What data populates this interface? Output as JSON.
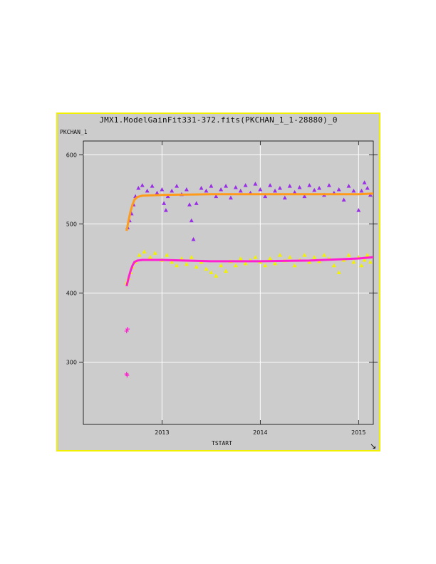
{
  "window": {
    "title": "JMX1.ModelGainFit331-372.fits(PKCHAN_1_1-28880)_0"
  },
  "colors": {
    "panel_bg": "#cccccc",
    "panel_border": "#f0f000",
    "purple_points": "#9a2ee6",
    "yellow_points": "#f2f200",
    "orange_fit": "#ff9a1a",
    "magenta_fit": "#ff1fd0"
  },
  "icons": {
    "resize": "resize-corner-icon"
  },
  "chart_data": {
    "type": "scatter",
    "title": "JMX1.ModelGainFit331-372.fits(PKCHAN_1_1-28880)_0",
    "xlabel": "TSTART",
    "ylabel": "PKCHAN_1",
    "xlim": [
      2012.2,
      2015.15
    ],
    "ylim": [
      210,
      620
    ],
    "x_ticks": [
      2013,
      2014,
      2015
    ],
    "x_tick_labels": [
      "2013",
      "2014",
      "2015"
    ],
    "y_ticks": [
      300,
      400,
      500,
      600
    ],
    "y_tick_labels": [
      "300",
      "400",
      "500",
      "600"
    ],
    "grid": true,
    "series": [
      {
        "marker": "triangle",
        "color": "#9a2ee6",
        "points": [
          [
            2012.65,
            495
          ],
          [
            2012.67,
            505
          ],
          [
            2012.69,
            515
          ],
          [
            2012.71,
            528
          ],
          [
            2012.73,
            540
          ],
          [
            2012.76,
            552
          ],
          [
            2012.8,
            556
          ],
          [
            2012.85,
            548
          ],
          [
            2012.9,
            555
          ],
          [
            2012.95,
            545
          ],
          [
            2013.0,
            550
          ],
          [
            2013.02,
            530
          ],
          [
            2013.04,
            520
          ],
          [
            2013.06,
            540
          ],
          [
            2013.1,
            548
          ],
          [
            2013.15,
            555
          ],
          [
            2013.2,
            543
          ],
          [
            2013.25,
            550
          ],
          [
            2013.28,
            528
          ],
          [
            2013.3,
            505
          ],
          [
            2013.32,
            478
          ],
          [
            2013.35,
            530
          ],
          [
            2013.4,
            552
          ],
          [
            2013.45,
            548
          ],
          [
            2013.5,
            555
          ],
          [
            2013.55,
            540
          ],
          [
            2013.6,
            550
          ],
          [
            2013.65,
            555
          ],
          [
            2013.7,
            538
          ],
          [
            2013.75,
            553
          ],
          [
            2013.8,
            548
          ],
          [
            2013.85,
            556
          ],
          [
            2013.9,
            545
          ],
          [
            2013.95,
            558
          ],
          [
            2014.0,
            550
          ],
          [
            2014.05,
            540
          ],
          [
            2014.1,
            556
          ],
          [
            2014.15,
            548
          ],
          [
            2014.2,
            552
          ],
          [
            2014.25,
            538
          ],
          [
            2014.3,
            555
          ],
          [
            2014.35,
            546
          ],
          [
            2014.4,
            553
          ],
          [
            2014.45,
            540
          ],
          [
            2014.5,
            556
          ],
          [
            2014.55,
            549
          ],
          [
            2014.6,
            552
          ],
          [
            2014.65,
            542
          ],
          [
            2014.7,
            556
          ],
          [
            2014.75,
            545
          ],
          [
            2014.8,
            550
          ],
          [
            2014.85,
            535
          ],
          [
            2014.9,
            555
          ],
          [
            2014.95,
            548
          ],
          [
            2015.0,
            520
          ],
          [
            2015.03,
            548
          ],
          [
            2015.06,
            560
          ],
          [
            2015.09,
            552
          ],
          [
            2015.12,
            542
          ]
        ]
      },
      {
        "marker": "triangle",
        "color": "#f2f200",
        "points": [
          [
            2012.64,
            415
          ],
          [
            2012.66,
            422
          ],
          [
            2012.68,
            430
          ],
          [
            2012.7,
            438
          ],
          [
            2012.73,
            445
          ],
          [
            2012.77,
            455
          ],
          [
            2012.82,
            460
          ],
          [
            2012.88,
            452
          ],
          [
            2012.93,
            458
          ],
          [
            2013.0,
            448
          ],
          [
            2013.05,
            455
          ],
          [
            2013.1,
            445
          ],
          [
            2013.15,
            440
          ],
          [
            2013.2,
            450
          ],
          [
            2013.25,
            442
          ],
          [
            2013.3,
            452
          ],
          [
            2013.35,
            438
          ],
          [
            2013.4,
            445
          ],
          [
            2013.45,
            435
          ],
          [
            2013.5,
            430
          ],
          [
            2013.55,
            425
          ],
          [
            2013.6,
            440
          ],
          [
            2013.65,
            432
          ],
          [
            2013.7,
            446
          ],
          [
            2013.75,
            440
          ],
          [
            2013.8,
            450
          ],
          [
            2013.85,
            443
          ],
          [
            2013.9,
            448
          ],
          [
            2013.95,
            452
          ],
          [
            2014.0,
            445
          ],
          [
            2014.05,
            440
          ],
          [
            2014.1,
            450
          ],
          [
            2014.15,
            443
          ],
          [
            2014.2,
            455
          ],
          [
            2014.25,
            447
          ],
          [
            2014.3,
            452
          ],
          [
            2014.35,
            440
          ],
          [
            2014.4,
            448
          ],
          [
            2014.45,
            455
          ],
          [
            2014.5,
            445
          ],
          [
            2014.55,
            452
          ],
          [
            2014.6,
            446
          ],
          [
            2014.65,
            455
          ],
          [
            2014.7,
            450
          ],
          [
            2014.75,
            440
          ],
          [
            2014.8,
            430
          ],
          [
            2014.85,
            448
          ],
          [
            2014.9,
            455
          ],
          [
            2014.95,
            445
          ],
          [
            2015.0,
            452
          ],
          [
            2015.03,
            440
          ],
          [
            2015.06,
            448
          ],
          [
            2015.09,
            455
          ],
          [
            2015.12,
            445
          ]
        ]
      },
      {
        "marker": "plus",
        "color": "#ff1fd0",
        "points": [
          [
            2012.64,
            345
          ],
          [
            2012.65,
            348
          ],
          [
            2012.64,
            283
          ],
          [
            2012.645,
            281
          ]
        ]
      },
      {
        "marker": "line",
        "color": "#ff9a1a",
        "points": [
          [
            2012.64,
            490
          ],
          [
            2012.66,
            505
          ],
          [
            2012.68,
            518
          ],
          [
            2012.7,
            528
          ],
          [
            2012.72,
            535
          ],
          [
            2012.75,
            539
          ],
          [
            2012.8,
            541
          ],
          [
            2013.0,
            542
          ],
          [
            2013.5,
            543
          ],
          [
            2014.0,
            543
          ],
          [
            2014.5,
            543
          ],
          [
            2015.0,
            543
          ],
          [
            2015.15,
            544
          ]
        ]
      },
      {
        "marker": "line",
        "color": "#ff1fd0",
        "points": [
          [
            2012.64,
            410
          ],
          [
            2012.66,
            422
          ],
          [
            2012.68,
            432
          ],
          [
            2012.7,
            440
          ],
          [
            2012.72,
            445
          ],
          [
            2012.75,
            447
          ],
          [
            2012.8,
            448
          ],
          [
            2013.0,
            448
          ],
          [
            2013.5,
            446
          ],
          [
            2014.0,
            446
          ],
          [
            2014.5,
            447
          ],
          [
            2015.0,
            450
          ],
          [
            2015.15,
            452
          ]
        ]
      }
    ]
  }
}
